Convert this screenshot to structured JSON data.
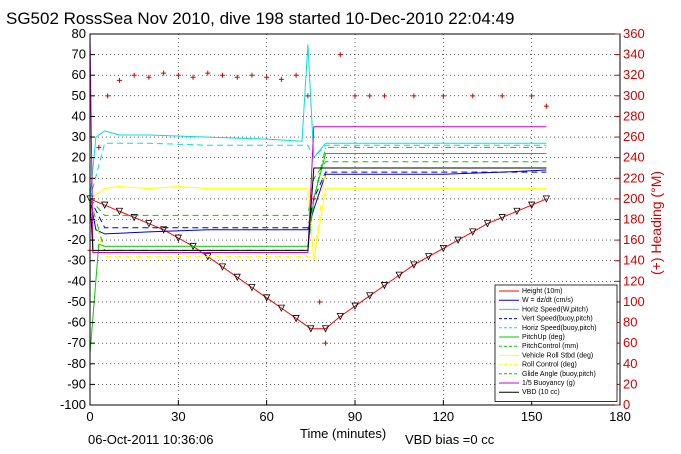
{
  "chart_data": {
    "type": "line",
    "title": "SG502 RossSea Nov 2010, dive 198 started 10-Dec-2010 22:04:49",
    "xlabel": "Time (minutes)",
    "ylabel": "",
    "y2label": "(+) Heading (°M)",
    "xlim": [
      0,
      180
    ],
    "ylim": [
      -100,
      80
    ],
    "y2lim": [
      0,
      360
    ],
    "xticks": [
      0,
      30,
      60,
      90,
      120,
      150,
      180
    ],
    "yticks": [
      -100,
      -90,
      -80,
      -70,
      -60,
      -50,
      -40,
      -30,
      -20,
      -10,
      0,
      10,
      20,
      30,
      40,
      50,
      60,
      70,
      80
    ],
    "y2ticks": [
      0,
      20,
      40,
      60,
      80,
      100,
      120,
      140,
      160,
      180,
      200,
      220,
      240,
      260,
      280,
      300,
      320,
      340,
      360
    ],
    "grid": true,
    "legend_position": "bottom-right",
    "footer_left": "06-Oct-2011 10:36:06",
    "footer_right": "VBD bias =0 cc",
    "series": [
      {
        "name": "Height (10m)",
        "color": "#ff0000",
        "style": "solid-markers",
        "x": [
          0,
          5,
          10,
          15,
          20,
          25,
          30,
          35,
          40,
          45,
          50,
          55,
          60,
          65,
          70,
          75,
          80,
          85,
          90,
          95,
          100,
          105,
          110,
          115,
          120,
          125,
          130,
          135,
          140,
          145,
          150,
          155
        ],
        "y": [
          0,
          -3,
          -6,
          -9,
          -12,
          -15,
          -19,
          -23,
          -28,
          -33,
          -38,
          -43,
          -48,
          -53,
          -58,
          -63,
          -63,
          -57,
          -52,
          -47,
          -42,
          -37,
          -32,
          -28,
          -24,
          -20,
          -16,
          -12,
          -9,
          -6,
          -3,
          0
        ]
      },
      {
        "name": "W = dz/dt (cm/s)",
        "color": "#0000cc",
        "style": "solid",
        "x": [
          0,
          2,
          5,
          20,
          40,
          60,
          74,
          76,
          80,
          100,
          120,
          140,
          155
        ],
        "y": [
          0,
          -15,
          -17,
          -16,
          -15,
          -15,
          -15,
          -5,
          12,
          12,
          12,
          13,
          14
        ]
      },
      {
        "name": "Horiz Speed(W,pitch)",
        "color": "#00e0e0",
        "style": "solid",
        "x": [
          0,
          2,
          5,
          10,
          20,
          40,
          60,
          72,
          74,
          76,
          80,
          100,
          120,
          140,
          155
        ],
        "y": [
          0,
          30,
          33,
          31,
          31,
          30,
          29,
          28,
          75,
          20,
          27,
          27,
          27,
          27,
          27
        ]
      },
      {
        "name": "Vert Speed(buoy,pitch)",
        "color": "#0000cc",
        "style": "dashed",
        "x": [
          0,
          5,
          20,
          40,
          60,
          74,
          76,
          80,
          100,
          120,
          140,
          155
        ],
        "y": [
          0,
          -14,
          -14,
          -14,
          -14,
          -14,
          0,
          13,
          13,
          13,
          13,
          13
        ]
      },
      {
        "name": "Horiz Speed(buoy,pitch)",
        "color": "#00e0e0",
        "style": "dashed",
        "x": [
          0,
          5,
          20,
          40,
          60,
          74,
          76,
          80,
          100,
          120,
          140,
          155
        ],
        "y": [
          0,
          27,
          27,
          26,
          26,
          26,
          20,
          26,
          26,
          26,
          26,
          26
        ]
      },
      {
        "name": "PitchUp (deg)",
        "color": "#00cc00",
        "style": "solid",
        "x": [
          0,
          3,
          5,
          20,
          40,
          60,
          74,
          76,
          80,
          100,
          120,
          140,
          155
        ],
        "y": [
          -75,
          -22,
          -23,
          -23,
          -23,
          -23,
          -23,
          0,
          22,
          22,
          22,
          22,
          22
        ]
      },
      {
        "name": "PitchControl (mm)",
        "color": "#00cc00",
        "style": "dashed",
        "x": [
          0,
          5,
          20,
          40,
          60,
          74,
          76,
          80,
          100,
          120,
          140,
          155
        ],
        "y": [
          0,
          -8,
          -8,
          -8,
          -8,
          -8,
          10,
          18,
          18,
          18,
          18,
          18
        ]
      },
      {
        "name": "Vehicle Roll Stbd (deg)",
        "color": "#ffff00",
        "style": "solid",
        "x": [
          0,
          5,
          10,
          20,
          30,
          40,
          50,
          60,
          70,
          74,
          76,
          80,
          90,
          100,
          110,
          120,
          130,
          140,
          150,
          155
        ],
        "y": [
          0,
          5,
          6,
          5,
          6,
          5,
          5,
          5,
          5,
          5,
          -30,
          5,
          5,
          5,
          5,
          5,
          5,
          5,
          5,
          5
        ]
      },
      {
        "name": "Roll Control (deg)",
        "color": "#ffff00",
        "style": "dashed",
        "x": [
          0,
          5,
          20,
          40,
          60,
          74,
          76,
          80,
          100,
          120,
          140,
          155
        ],
        "y": [
          0,
          -28,
          -28,
          -28,
          -28,
          -28,
          -30,
          15,
          15,
          15,
          15,
          15
        ]
      },
      {
        "name": "Glide Angle (buoy,pitch)",
        "color": "#00cc00",
        "style": "dash-dot",
        "x": [
          0,
          5,
          20,
          40,
          60,
          74,
          76,
          80,
          100,
          120,
          140,
          155
        ],
        "y": [
          0,
          -25,
          -25,
          -25,
          -25,
          -25,
          0,
          25,
          25,
          25,
          25,
          25
        ]
      },
      {
        "name": "1/5 Buoyancy (g)",
        "color": "#cc00cc",
        "style": "solid",
        "x": [
          0,
          1,
          3,
          20,
          40,
          60,
          74,
          76,
          80,
          100,
          120,
          140,
          155
        ],
        "y": [
          80,
          -26,
          -26,
          -26,
          -26,
          -26,
          -26,
          35,
          35,
          35,
          35,
          35,
          35
        ]
      },
      {
        "name": "VBD (10 cc)",
        "color": "#000000",
        "style": "solid",
        "x": [
          0,
          1,
          3,
          20,
          40,
          60,
          74,
          76,
          80,
          100,
          120,
          140,
          155
        ],
        "y": [
          0,
          -25,
          -25,
          -25,
          -25,
          -25,
          -25,
          15,
          15,
          15,
          15,
          15,
          15
        ]
      }
    ],
    "heading_series": {
      "name": "Heading",
      "color": "#d40000",
      "axis": "right",
      "x": [
        0,
        3,
        6,
        10,
        15,
        20,
        25,
        30,
        35,
        40,
        45,
        50,
        55,
        60,
        65,
        70,
        74,
        76,
        78,
        80,
        85,
        90,
        95,
        100,
        110,
        120,
        130,
        140,
        150,
        155
      ],
      "y": [
        150,
        250,
        300,
        315,
        320,
        318,
        322,
        320,
        318,
        322,
        320,
        318,
        320,
        318,
        316,
        320,
        300,
        200,
        100,
        60,
        340,
        300,
        300,
        300,
        300,
        300,
        300,
        300,
        300,
        290
      ]
    }
  }
}
